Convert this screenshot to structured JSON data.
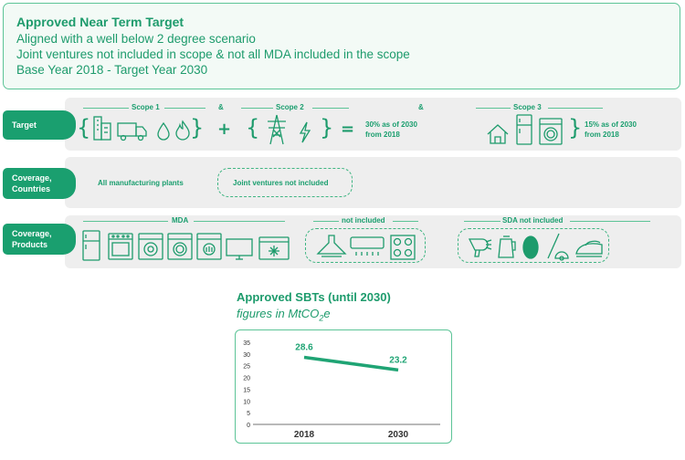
{
  "header": {
    "title": "Approved Near Term Target",
    "line1": "Aligned with a well below 2 degree scenario",
    "line2": "Joint ventures not included in scope & not all MDA included in the scope",
    "line3": "Base Year 2018 - Target Year 2030"
  },
  "target_row": {
    "label": "Target",
    "scope1": "Scope 1",
    "amp1": "&",
    "scope2": "Scope 2",
    "amp2": "&",
    "scope3": "Scope 3",
    "plus": "+",
    "equals": "=",
    "s12_target_a": "30% as of 2030",
    "s12_target_b": "from 2018",
    "s3_target_a": "15% as of 2030",
    "s3_target_b": "from 2018"
  },
  "coverage_countries": {
    "label_a": "Coverage,",
    "label_b": "Countries",
    "included": "All manufacturing plants",
    "excluded": "Joint ventures not included"
  },
  "coverage_products": {
    "label_a": "Coverage,",
    "label_b": "Products",
    "mda": "MDA",
    "not_included": "not included",
    "sda": "SDA not included"
  },
  "chart_data": {
    "type": "line",
    "title": "Approved SBTs (until 2030)",
    "subtitle_main": "figures in MtCO",
    "subtitle_sub": "2",
    "subtitle_end": "e",
    "categories": [
      "2018",
      "2030"
    ],
    "values": [
      28.6,
      23.2
    ],
    "value_labels": [
      "28.6",
      "23.2"
    ],
    "yticks": [
      "0",
      "5",
      "10",
      "15",
      "20",
      "25",
      "30",
      "35"
    ],
    "ylim": [
      0,
      35
    ],
    "color": "#1fa474"
  }
}
